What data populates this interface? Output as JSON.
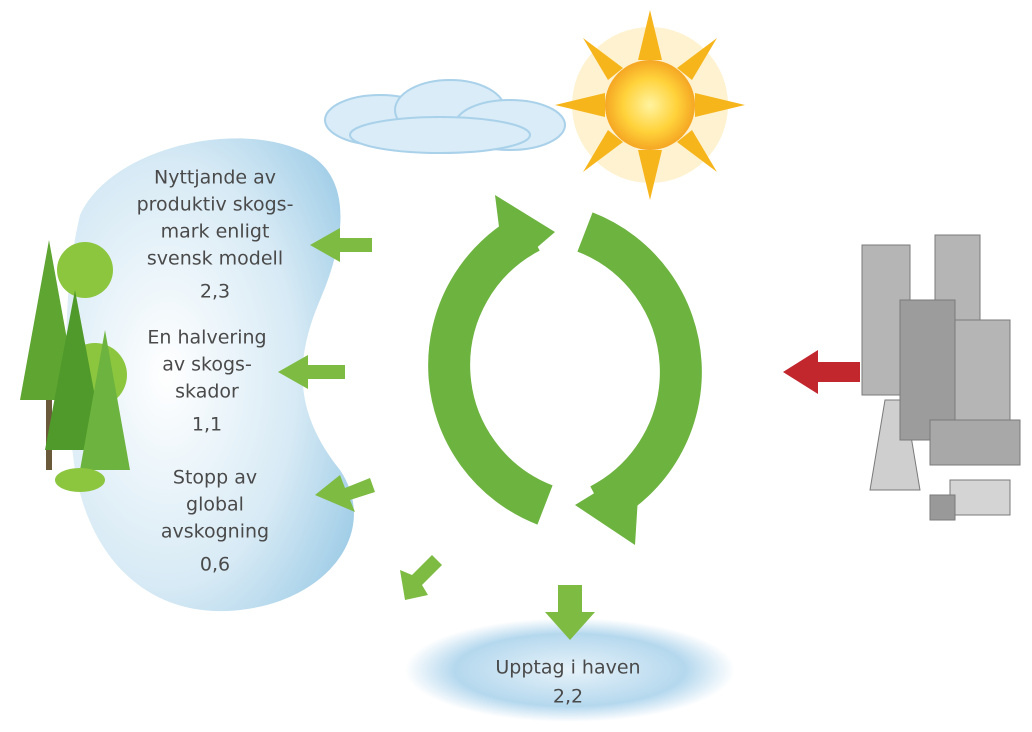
{
  "items": [
    {
      "lines": [
        "Nyttjande av",
        "produktiv skogs-",
        "mark enligt",
        "svensk modell"
      ],
      "value": "2,3"
    },
    {
      "lines": [
        "En halvering",
        "av skogs-",
        "skador"
      ],
      "value": "1,1"
    },
    {
      "lines": [
        "Stopp av",
        "global",
        "avskogning"
      ],
      "value": "0,6"
    }
  ],
  "ocean": {
    "lines": [
      "Upptag i haven"
    ],
    "value": "2,2"
  }
}
